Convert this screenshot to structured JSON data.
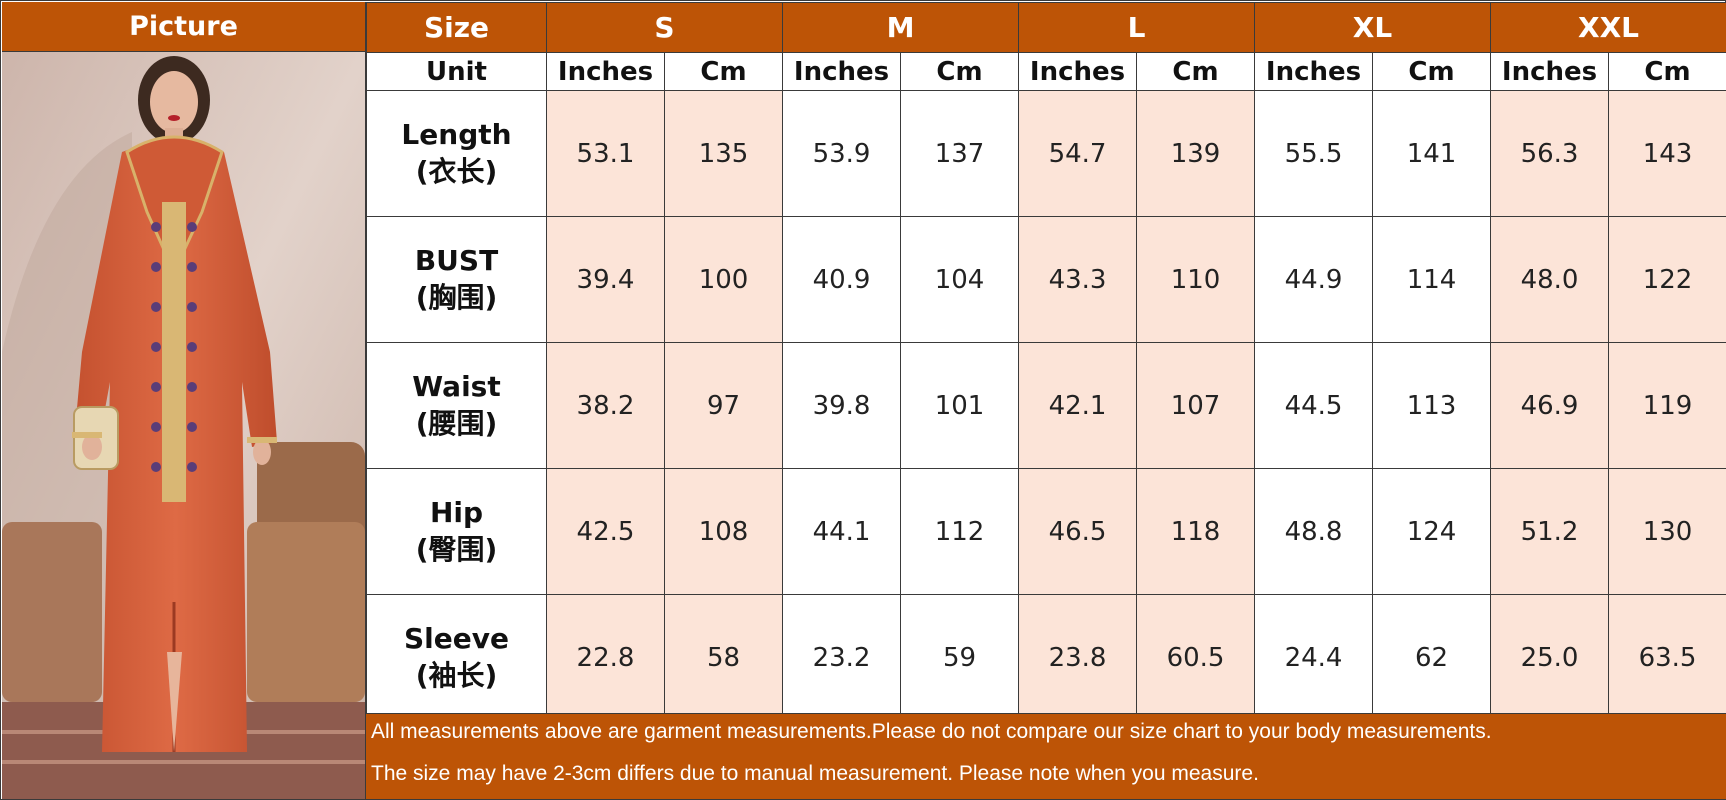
{
  "picture_header": "Picture",
  "size_header": "Size",
  "unit_label": "Unit",
  "sizes": [
    "S",
    "M",
    "L",
    "XL",
    "XXL"
  ],
  "unit_inches": "Inches",
  "unit_cm": "Cm",
  "rows": [
    {
      "name": "Length",
      "cn": "(衣长)",
      "values": [
        "53.1",
        "135",
        "53.9",
        "137",
        "54.7",
        "139",
        "55.5",
        "141",
        "56.3",
        "143"
      ]
    },
    {
      "name": "BUST",
      "cn": "(胸围)",
      "values": [
        "39.4",
        "100",
        "40.9",
        "104",
        "43.3",
        "110",
        "44.9",
        "114",
        "48.0",
        "122"
      ]
    },
    {
      "name": "Waist",
      "cn": "(腰围)",
      "values": [
        "38.2",
        "97",
        "39.8",
        "101",
        "42.1",
        "107",
        "44.5",
        "113",
        "46.9",
        "119"
      ]
    },
    {
      "name": "Hip",
      "cn": "(臀围)",
      "values": [
        "42.5",
        "108",
        "44.1",
        "112",
        "46.5",
        "118",
        "48.8",
        "124",
        "51.2",
        "130"
      ]
    },
    {
      "name": "Sleeve",
      "cn": "(袖长)",
      "values": [
        "22.8",
        "58",
        "23.2",
        "59",
        "23.8",
        "60.5",
        "24.4",
        "62",
        "25.0",
        "63.5"
      ]
    }
  ],
  "notes": [
    "All measurements above are garment measurements.Please do not compare our size chart to your body measurements.",
    "The size may have 2-3cm differs due to manual measurement. Please note when you measure."
  ],
  "colors": {
    "header_bg": "#bd5406",
    "shade": "#fce4d8",
    "dress": "#d4603e",
    "wall": "#d9c6bd"
  }
}
